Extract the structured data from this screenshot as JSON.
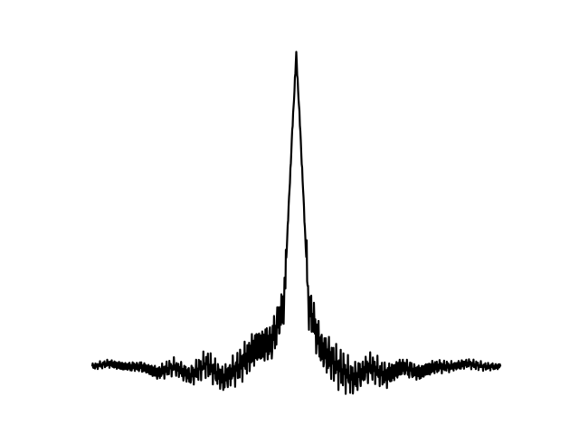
{
  "chart_data": {
    "type": "line",
    "title": "",
    "xlabel": "",
    "ylabel": "",
    "axes_visible": false,
    "grid": false,
    "legend": "none",
    "xlim": [
      0,
      1
    ],
    "ylim": [
      -0.1,
      1.0
    ],
    "series": [
      {
        "color": "#000000",
        "x": [
          0.0,
          0.04,
          0.08,
          0.12,
          0.16,
          0.2,
          0.24,
          0.28,
          0.32,
          0.36,
          0.4,
          0.44,
          0.47,
          0.49,
          0.5,
          0.51,
          0.53,
          0.56,
          0.6,
          0.64,
          0.68,
          0.72,
          0.76,
          0.8,
          0.84,
          0.88,
          0.92,
          0.96,
          1.0
        ],
        "y": [
          0.0,
          0.01,
          0.0,
          0.0,
          -0.02,
          0.0,
          -0.03,
          0.01,
          -0.04,
          0.0,
          0.06,
          0.08,
          0.2,
          0.75,
          1.0,
          0.75,
          0.2,
          0.06,
          0.0,
          -0.04,
          0.0,
          -0.03,
          0.0,
          -0.02,
          0.0,
          0.0,
          0.01,
          0.0,
          0.0
        ]
      }
    ]
  }
}
